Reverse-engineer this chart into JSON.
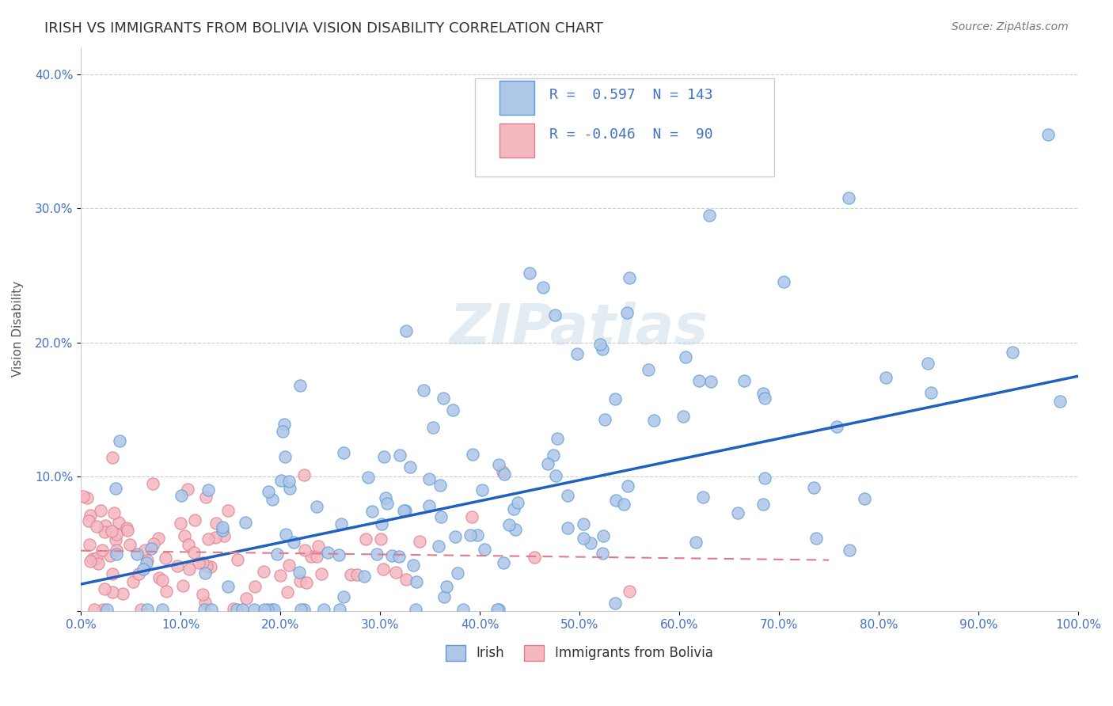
{
  "title": "IRISH VS IMMIGRANTS FROM BOLIVIA VISION DISABILITY CORRELATION CHART",
  "source": "Source: ZipAtlas.com",
  "ylabel": "Vision Disability",
  "xlabel": "",
  "xlim": [
    0,
    1.0
  ],
  "ylim": [
    0,
    0.42
  ],
  "xticks": [
    0.0,
    0.1,
    0.2,
    0.3,
    0.4,
    0.5,
    0.6,
    0.7,
    0.8,
    0.9,
    1.0
  ],
  "xticklabels": [
    "0.0%",
    "10.0%",
    "20.0%",
    "30.0%",
    "40.0%",
    "50.0%",
    "60.0%",
    "70.0%",
    "80.0%",
    "90.0%",
    "100.0%"
  ],
  "yticks": [
    0.0,
    0.1,
    0.2,
    0.3,
    0.4
  ],
  "yticklabels": [
    "",
    "10.0%",
    "20.0%",
    "30.0%",
    "40.0%"
  ],
  "irish_R": 0.597,
  "irish_N": 143,
  "bolivia_R": -0.046,
  "bolivia_N": 90,
  "irish_color": "#aec6e8",
  "irish_edge_color": "#5b9bd5",
  "bolivia_color": "#f4b8c1",
  "bolivia_edge_color": "#e07b8a",
  "trend_irish_color": "#2060c0",
  "trend_bolivia_color": "#e07b8a",
  "background_color": "#ffffff",
  "grid_color": "#cccccc",
  "watermark": "ZIPatlas",
  "title_fontsize": 13,
  "axis_label_fontsize": 11,
  "tick_fontsize": 11,
  "legend_fontsize": 13
}
